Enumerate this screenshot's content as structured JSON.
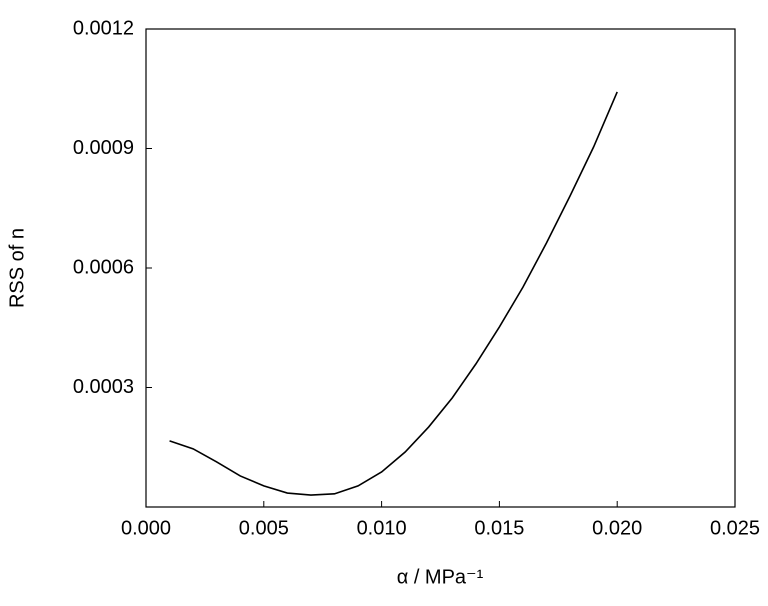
{
  "chart_data": {
    "type": "line",
    "xlabel": "α / MPa⁻¹",
    "ylabel": "RSS of n",
    "x": [
      0.001,
      0.002,
      0.003,
      0.004,
      0.005,
      0.006,
      0.007,
      0.008,
      0.009,
      0.01,
      0.011,
      0.012,
      0.013,
      0.014,
      0.015,
      0.016,
      0.017,
      0.018,
      0.019,
      0.02
    ],
    "series": [
      {
        "color": "#000000",
        "values": [
          0.000166,
          0.000146,
          0.000113,
          7.8e-05,
          5.3e-05,
          3.5e-05,
          3e-05,
          3.3e-05,
          5.3e-05,
          8.8e-05,
          0.000138,
          0.000201,
          0.000274,
          0.000359,
          0.000452,
          0.000552,
          0.000663,
          0.000781,
          0.000904,
          0.001042
        ]
      }
    ],
    "xlim": [
      0,
      0.025
    ],
    "xticks": [
      {
        "value": 0,
        "label": "0.000"
      },
      {
        "value": 0.005,
        "label": "0.005"
      },
      {
        "value": 0.01,
        "label": "0.010"
      },
      {
        "value": 0.015,
        "label": "0.015"
      },
      {
        "value": 0.02,
        "label": "0.020"
      },
      {
        "value": 0.025,
        "label": "0.025"
      }
    ],
    "ylim": [
      0,
      0.0012
    ],
    "yticks": [
      0.0003,
      0.0006,
      0.0009,
      0.0012
    ]
  }
}
